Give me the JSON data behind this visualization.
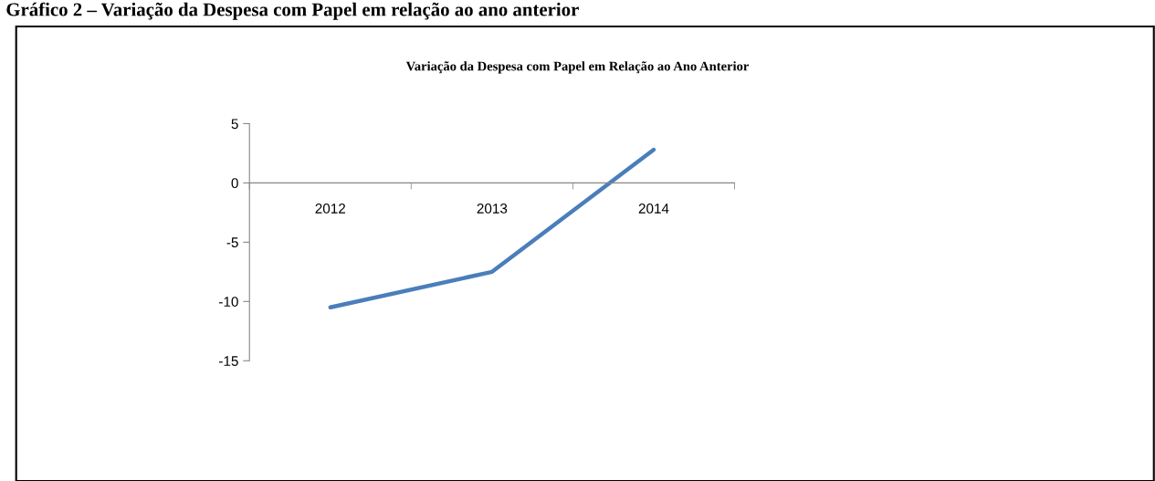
{
  "chart_data": {
    "type": "line",
    "title": "Variação da Despesa com Papel em Relação ao Ano Anterior",
    "annotations": [
      "Gráfico 2 – Variação da Despesa com Papel em relação ao ano anterior"
    ],
    "categories": [
      "2012",
      "2013",
      "2014"
    ],
    "series": [
      {
        "color": "#4a7ebb",
        "values": [
          -10.5,
          -7.5,
          2.8
        ]
      }
    ],
    "ylim": [
      -15,
      5
    ],
    "yticks": [
      -15,
      -10,
      -5,
      0,
      5
    ],
    "grid": false,
    "legend": false,
    "marker": "none",
    "line_style": "solid"
  }
}
